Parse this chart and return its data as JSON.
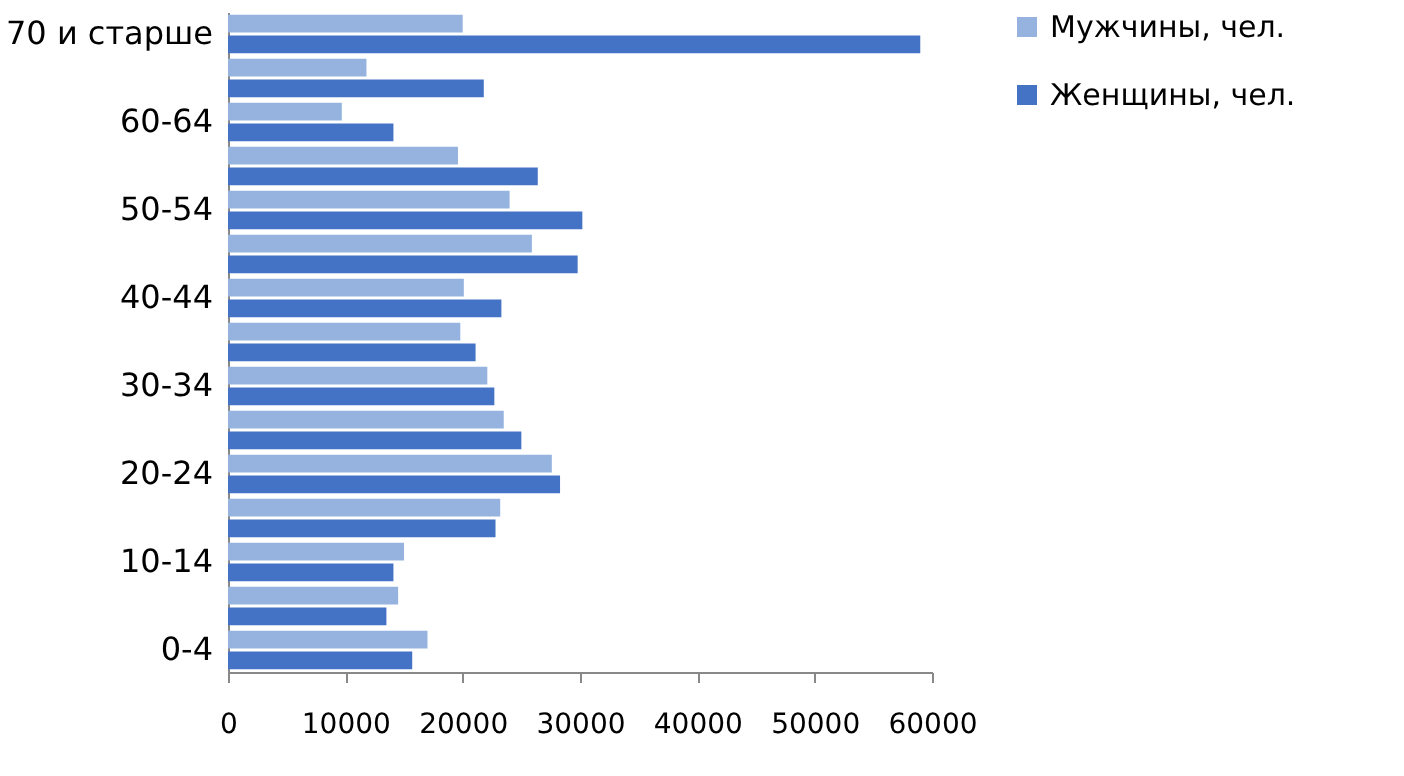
{
  "chart_data": {
    "type": "bar",
    "orientation": "horizontal",
    "categories": [
      "70 и старше",
      null,
      "60-64",
      null,
      "50-54",
      null,
      "40-44",
      null,
      "30-34",
      null,
      "20-24",
      null,
      "10-14",
      null,
      "0-4"
    ],
    "series": [
      {
        "name": "Мужчины, чел.",
        "color": "#95b3de",
        "values": [
          20000,
          11800,
          9700,
          19600,
          24000,
          25900,
          20100,
          19800,
          22100,
          23500,
          27600,
          23200,
          15000,
          14500,
          17000
        ]
      },
      {
        "name": "Женщины, чел.",
        "color": "#4472c4",
        "values": [
          59000,
          21800,
          14100,
          26400,
          30200,
          29800,
          23300,
          21100,
          22700,
          25000,
          28300,
          22800,
          14100,
          13500,
          15700
        ]
      }
    ],
    "xlim": [
      0,
      60000
    ],
    "xticks": [
      0,
      10000,
      20000,
      30000,
      40000,
      50000,
      60000
    ],
    "grid": false,
    "legend": "right"
  }
}
